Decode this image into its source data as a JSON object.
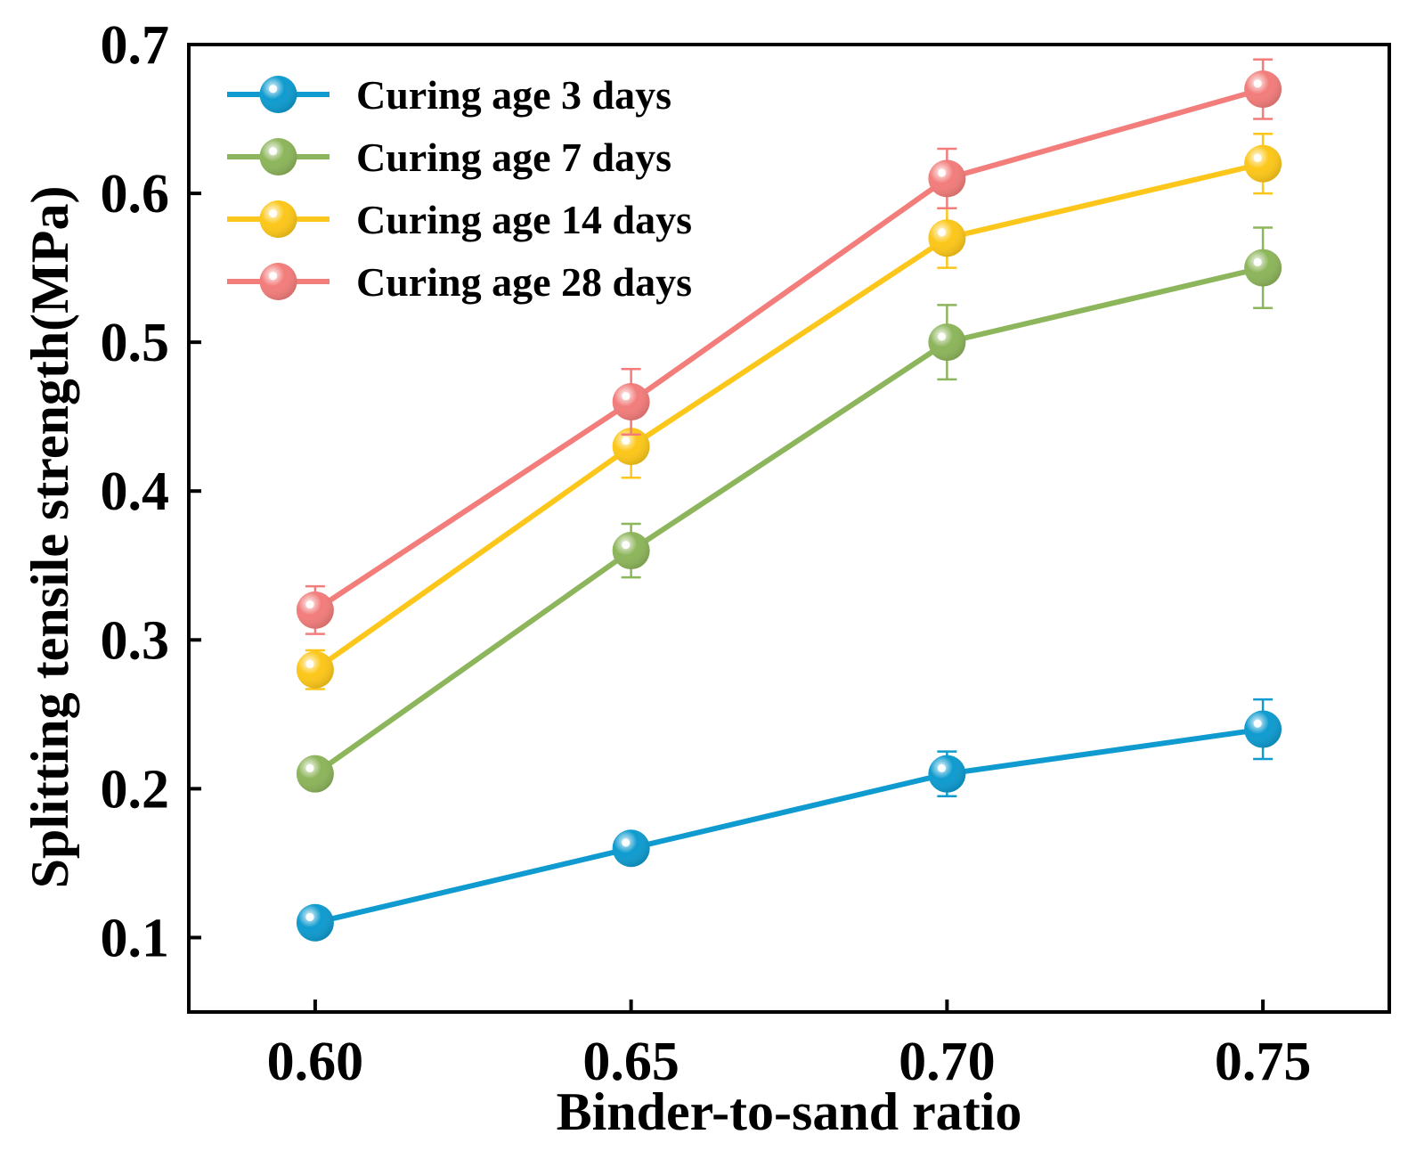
{
  "chart_data": {
    "type": "line",
    "title": "",
    "xlabel": "Binder-to-sand ratio",
    "ylabel": "Splitting tensile strength(MPa)",
    "x": [
      0.6,
      0.65,
      0.7,
      0.75
    ],
    "xtick_labels": [
      "0.60",
      "0.65",
      "0.70",
      "0.75"
    ],
    "xlim": [
      0.58,
      0.77
    ],
    "ylim": [
      0.05,
      0.7
    ],
    "yticks": [
      0.1,
      0.2,
      0.3,
      0.4,
      0.5,
      0.6,
      0.7
    ],
    "ytick_labels": [
      "0.1",
      "0.2",
      "0.3",
      "0.4",
      "0.5",
      "0.6",
      "0.7"
    ],
    "grid": false,
    "legend_position": "top-left",
    "series": [
      {
        "name": "Curing age 3 days",
        "color": "#0f9bcf",
        "values": [
          0.11,
          0.16,
          0.21,
          0.24
        ],
        "errors": [
          0.0,
          0.0,
          0.015,
          0.02
        ]
      },
      {
        "name": "Curing age 7 days",
        "color": "#8db55b",
        "values": [
          0.21,
          0.36,
          0.5,
          0.55
        ],
        "errors": [
          0.0,
          0.018,
          0.025,
          0.027
        ]
      },
      {
        "name": "Curing age 14 days",
        "color": "#fcc71a",
        "values": [
          0.28,
          0.43,
          0.57,
          0.62
        ],
        "errors": [
          0.013,
          0.021,
          0.02,
          0.02
        ]
      },
      {
        "name": "Curing age 28 days",
        "color": "#f27d7b",
        "values": [
          0.32,
          0.46,
          0.61,
          0.67
        ],
        "errors": [
          0.016,
          0.022,
          0.02,
          0.02
        ]
      }
    ]
  }
}
